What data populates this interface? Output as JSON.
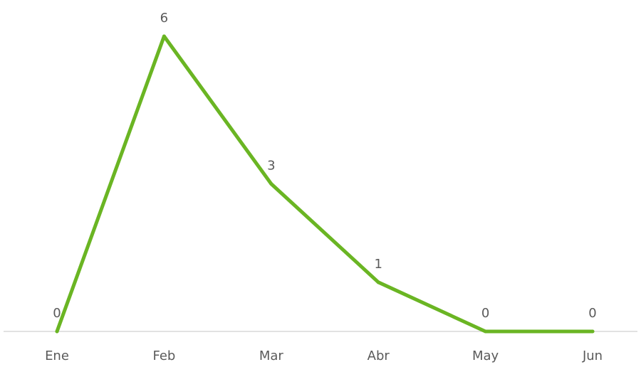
{
  "chart_data": {
    "type": "line",
    "categories": [
      "Ene",
      "Feb",
      "Mar",
      "Abr",
      "May",
      "Jun"
    ],
    "series": [
      {
        "values": [
          0,
          6,
          3,
          1,
          0,
          0
        ]
      }
    ],
    "title": "",
    "xlabel": "",
    "ylabel": "",
    "ylim": [
      0,
      6
    ],
    "grid": false,
    "data_labels": true,
    "colors": {
      "line": "#6ab523",
      "axis": "#d9d9d9",
      "text": "#5a5a5a"
    }
  }
}
